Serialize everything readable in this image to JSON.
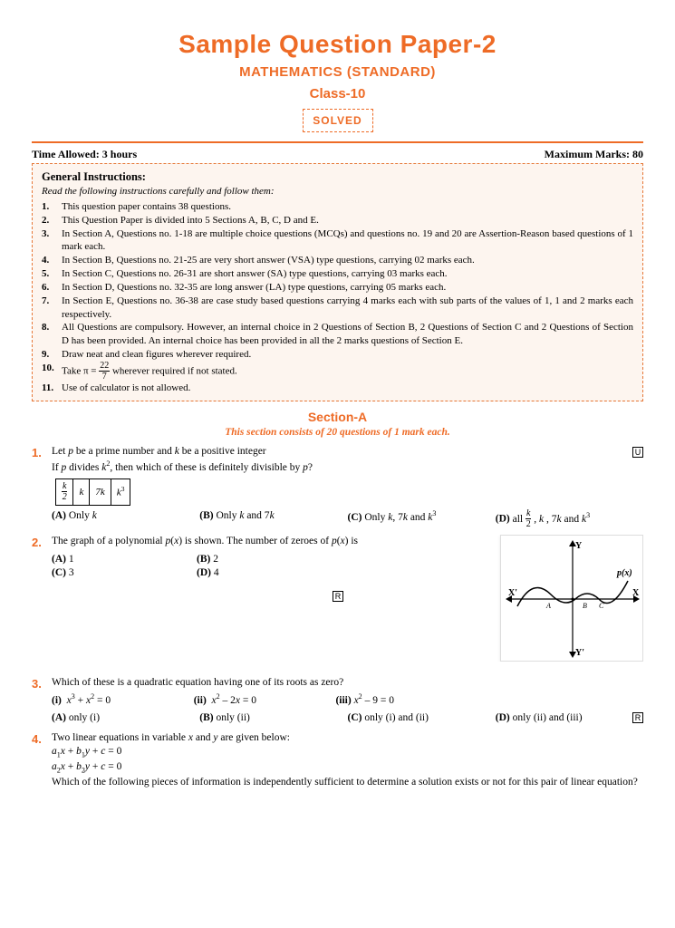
{
  "accent": "#ee6b26",
  "bg_tint": "#fdf5ef",
  "header": {
    "title": "Sample Question Paper-2",
    "subject": "MATHEMATICS (STANDARD)",
    "class": "Class-10",
    "solved": "SOLVED"
  },
  "meta": {
    "time": "Time Allowed: 3 hours",
    "marks": "Maximum Marks: 80"
  },
  "instr": {
    "heading": "General Instructions:",
    "sub": "Read the following instructions carefully and follow them:",
    "items": [
      "This question paper contains 38 questions.",
      "This Question Paper is divided into 5 Sections A, B, C, D and E.",
      "In Section A, Questions no. 1-18 are multiple choice questions (MCQs) and questions no. 19 and 20 are Assertion-Reason based questions of 1 mark each.",
      "In Section B, Questions no. 21-25 are very short answer (VSA) type questions, carrying 02 marks each.",
      "In Section C, Questions no. 26-31 are short answer (SA) type questions, carrying 03 marks each.",
      "In Section D, Questions no. 32-35 are long answer (LA) type questions, carrying 05 marks each.",
      "In Section E, Questions no. 36-38 are case study based questions carrying 4 marks each with sub parts of the values of 1, 1 and 2 marks each respectively.",
      "All Questions are compulsory. However, an internal choice in 2 Questions of Section B, 2 Questions of Section C and 2 Questions of Section D has been provided. An internal choice has been provided in all the 2 marks questions of Section E.",
      "Draw neat and clean figures wherever required.",
      "__PI__",
      "Use of calculator is not allowed."
    ],
    "pi_prefix": "Take π = ",
    "pi_suffix": " wherever required if not stated."
  },
  "sectionA": {
    "title": "Section-A",
    "sub": "This section consists of 20 questions of 1 mark each."
  },
  "q1": {
    "n": "1.",
    "line1": "Let p be a prime number and k be a positive integer",
    "line2": "If p divides k², then which of these is definitely divisible by p?",
    "tag": "U",
    "cells": [
      "__FRAC_k_2__",
      "k",
      "7k",
      "k³"
    ],
    "opts": {
      "a": "Only k",
      "b": "Only k and 7k",
      "c": "Only k, 7k and k³",
      "d_prefix": "all ",
      "d_suffix": " , k , 7k and k³"
    }
  },
  "q2": {
    "n": "2.",
    "text": "The graph of a polynomial p(x) is shown. The number of zeroes of p(x) is",
    "tag": "R",
    "opts": {
      "a": "1",
      "b": "2",
      "c": "3",
      "d": "4"
    },
    "graph": {
      "labels": {
        "x_pos": "X",
        "x_neg": "X'",
        "y_pos": "Y",
        "y_neg": "Y'",
        "curve": "p(x)",
        "pts": [
          "A",
          "B",
          "C"
        ]
      },
      "axis_color": "#000",
      "curve_color": "#000",
      "bg": "#fff"
    }
  },
  "q3": {
    "n": "3.",
    "text": "Which of these is a quadratic equation having one of its roots as zero?",
    "tag": "R",
    "subs": {
      "i": "x³ + x² = 0",
      "ii": "x² – 2x = 0",
      "iii": "x² – 9 = 0"
    },
    "opts": {
      "a": "only (i)",
      "b": "only (ii)",
      "c": "only (i) and (ii)",
      "d": "only (ii) and (iii)"
    }
  },
  "q4": {
    "n": "4.",
    "line1": "Two linear equations in variable x and y are given below:",
    "eq1": "a₁x + b₁y + c = 0",
    "eq2": "a₂x + b₂y + c = 0",
    "line2": "Which of the following pieces of information is independently sufficient to determine a solution exists or not for this pair of linear equation?"
  }
}
